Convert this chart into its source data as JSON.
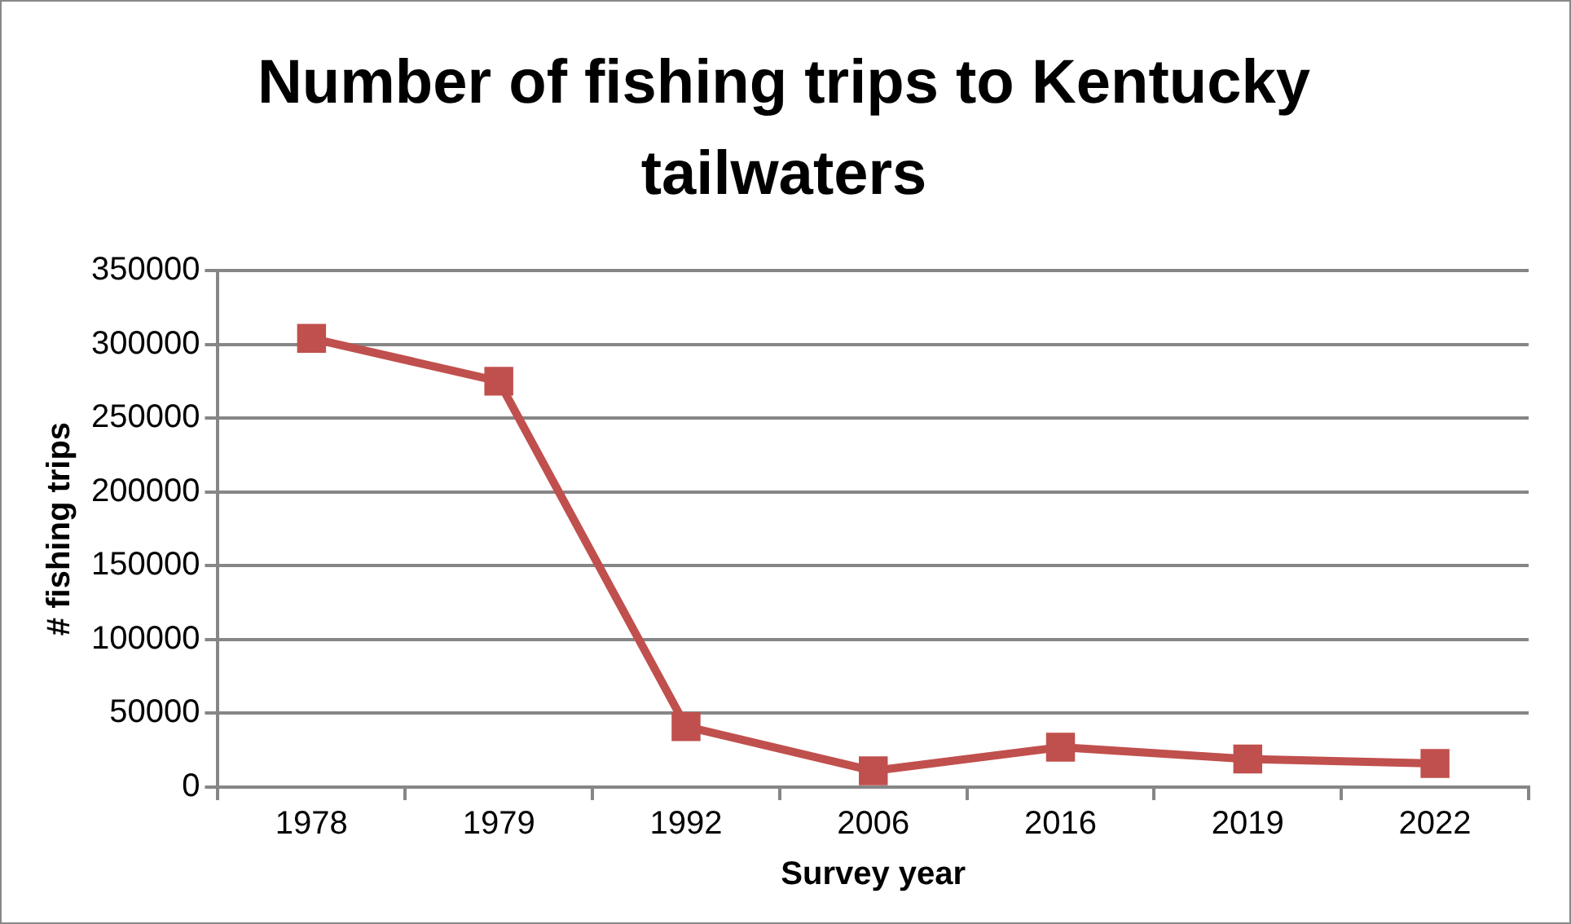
{
  "chart_data": {
    "type": "line",
    "title": "Number of fishing trips to Kentucky tailwaters",
    "xlabel": "Survey year",
    "ylabel": "# fishing trips",
    "categories": [
      "1978",
      "1979",
      "1992",
      "2006",
      "2016",
      "2019",
      "2022"
    ],
    "series": [
      {
        "color": "#c0504d",
        "values": [
          304000,
          275000,
          41000,
          11000,
          27000,
          19000,
          16000
        ]
      }
    ],
    "ylim": [
      0,
      350000
    ],
    "yticks": [
      0,
      50000,
      100000,
      150000,
      200000,
      250000,
      300000,
      350000
    ],
    "grid": "y",
    "legend": false,
    "marker": "square",
    "line_style": "solid"
  }
}
